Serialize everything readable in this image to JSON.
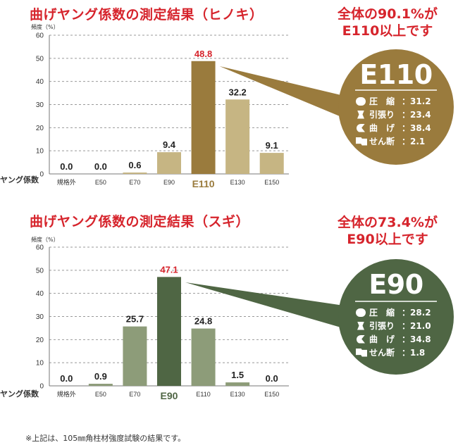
{
  "footnote": "※上記は、105㎜角柱材強度試験の結果です。",
  "chart_data": [
    {
      "type": "bar",
      "title": "曲げヤング係数の測定結果（ヒノキ）",
      "ylabel": "頻度（%）",
      "xlabel": "ヤング係数",
      "ylim": [
        0,
        60
      ],
      "yticks": [
        "0",
        "10",
        "20",
        "30",
        "40",
        "50",
        "60"
      ],
      "grid": true,
      "categories": [
        "規格外",
        "E50",
        "E70",
        "E90",
        "E110",
        "E130",
        "E150"
      ],
      "values": [
        0.0,
        0.0,
        0.6,
        9.4,
        48.8,
        32.2,
        9.1
      ],
      "value_labels": [
        "0.0",
        "0.0",
        "0.6",
        "9.4",
        "48.8",
        "32.2",
        "9.1"
      ],
      "highlight_index": 4,
      "colors": {
        "bar": "#c6b583",
        "highlight": "#9a7b3d",
        "highlight_text": "#d6242c",
        "accent_label": "#9a7b3d",
        "circle": "#9a7b3d"
      },
      "headline": [
        "全体の90.1%が",
        "E110以上です"
      ],
      "grade": "E110",
      "properties": [
        {
          "icon": "compression-icon",
          "name": "圧　縮",
          "value": "：31.2"
        },
        {
          "icon": "tension-icon",
          "name": "引張り",
          "value": "：23.4"
        },
        {
          "icon": "bending-icon",
          "name": "曲　げ",
          "value": "：38.4"
        },
        {
          "icon": "shear-icon",
          "name": "せん断",
          "value": "：2.1"
        }
      ]
    },
    {
      "type": "bar",
      "title": "曲げヤング係数の測定結果（スギ）",
      "ylabel": "頻度（%）",
      "xlabel": "ヤング係数",
      "ylim": [
        0,
        60
      ],
      "yticks": [
        "0",
        "10",
        "20",
        "30",
        "40",
        "50",
        "60"
      ],
      "grid": true,
      "categories": [
        "規格外",
        "E50",
        "E70",
        "E90",
        "E110",
        "E130",
        "E150"
      ],
      "values": [
        0.0,
        0.9,
        25.7,
        47.1,
        24.8,
        1.5,
        0.0
      ],
      "value_labels": [
        "0.0",
        "0.9",
        "25.7",
        "47.1",
        "24.8",
        "1.5",
        "0.0"
      ],
      "highlight_index": 3,
      "colors": {
        "bar": "#8d9c79",
        "highlight": "#4f6644",
        "highlight_text": "#d6242c",
        "accent_label": "#4f6644",
        "circle": "#4f6644"
      },
      "headline": [
        "全体の73.4%が",
        "E90以上です"
      ],
      "grade": "E90",
      "properties": [
        {
          "icon": "compression-icon",
          "name": "圧　縮",
          "value": "：28.2"
        },
        {
          "icon": "tension-icon",
          "name": "引張り",
          "value": "：21.0"
        },
        {
          "icon": "bending-icon",
          "name": "曲　げ",
          "value": "：34.8"
        },
        {
          "icon": "shear-icon",
          "name": "せん断",
          "value": "：1.8"
        }
      ]
    }
  ]
}
